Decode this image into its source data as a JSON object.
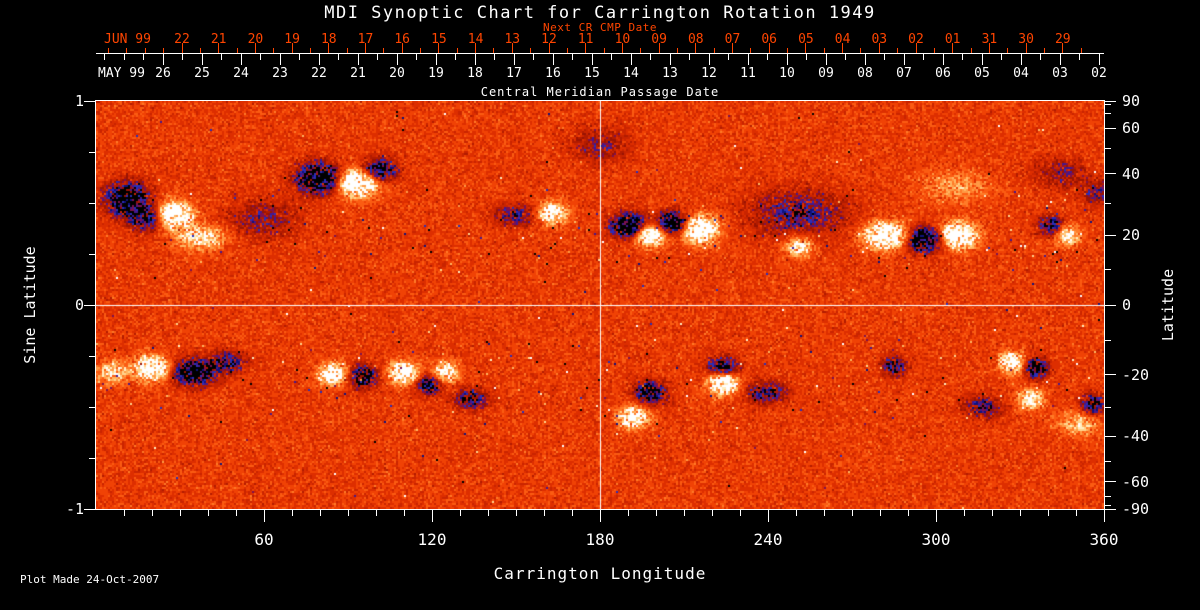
{
  "title": "MDI Synoptic Chart for Carrington Rotation 1949",
  "footer_note": "Plot Made 24-Oct-2007",
  "colors": {
    "background": "#000000",
    "foreground": "#ffffff",
    "accent_orange": "#ff4500"
  },
  "chart_data": {
    "type": "heatmap",
    "title": "MDI Synoptic Chart for Carrington Rotation 1949",
    "xlabel": "Carrington Longitude",
    "ylabel_left": "Sine Latitude",
    "ylabel_right": "Latitude",
    "top_axis_title": "Central Meridian Passage Date",
    "top_axis_next_cr_label": "Next CR CMP Date",
    "xlim": [
      0,
      360
    ],
    "ylim_sine": [
      -1,
      1
    ],
    "x_ticks_major": [
      60,
      120,
      180,
      240,
      300,
      360
    ],
    "x_tick_minor_step_deg": 10,
    "y_left_ticks_major": [
      "1",
      "0",
      "-1"
    ],
    "y_left_tick_minor_step": 0.25,
    "y_right_ticks_major": [
      90,
      60,
      40,
      20,
      0,
      -20,
      -40,
      -60,
      -90
    ],
    "y_right_ticks_minor": [
      80,
      70,
      50,
      30,
      10,
      -10,
      -30,
      -50,
      -70,
      -80
    ],
    "grid_longitude": [
      180
    ],
    "grid_latitude": [
      0
    ],
    "cmp_axis": {
      "next_cr_month": "JUN 99",
      "next_cr_days": [
        "22",
        "21",
        "20",
        "19",
        "18",
        "17",
        "16",
        "15",
        "14",
        "13",
        "12",
        "11",
        "10",
        "09",
        "08",
        "07",
        "06",
        "05",
        "04",
        "03",
        "02",
        "01",
        "31",
        "30",
        "29"
      ],
      "current_month": "MAY 99",
      "current_days": [
        "26",
        "25",
        "24",
        "23",
        "22",
        "21",
        "20",
        "19",
        "18",
        "17",
        "16",
        "15",
        "14",
        "13",
        "12",
        "11",
        "10",
        "09",
        "08",
        "07",
        "06",
        "05",
        "04",
        "03",
        "02"
      ]
    },
    "magnetogram": {
      "seed": 1949,
      "bias": 0.05,
      "noise_amp": 0.24,
      "speckle": {
        "base": 0.002,
        "band_amp": 0.011,
        "band_center": 0.36,
        "band_sigma": 0.17,
        "neg_frac": 0.58,
        "mag_base": 0.5,
        "mag_rand": 0.85
      },
      "palette": [
        [
          -1.02,
          "#000000"
        ],
        [
          -0.86,
          "#10127d"
        ],
        [
          -0.72,
          "#2a2eb8"
        ],
        [
          -0.6,
          "#46188c"
        ],
        [
          -0.46,
          "#7c1150"
        ],
        [
          -0.34,
          "#991303"
        ],
        [
          -0.22,
          "#b21b00"
        ],
        [
          -0.1,
          "#c92400"
        ],
        [
          0.04,
          "#dd2e00"
        ],
        [
          0.18,
          "#f04205"
        ],
        [
          0.32,
          "#fb5c12"
        ],
        [
          0.46,
          "#ff7b28"
        ],
        [
          0.6,
          "#ff9a45"
        ],
        [
          0.74,
          "#ffb763"
        ],
        [
          0.88,
          "#ffd48d"
        ],
        [
          1.0,
          "#ffeec2"
        ]
      ],
      "palette_top": "#ffffff",
      "active_regions_format": [
        "lon_deg",
        "sine_lat",
        "rx_deg",
        "ry_sine",
        "strength"
      ],
      "active_regions": [
        [
          11,
          0.52,
          7,
          0.075,
          -1.7
        ],
        [
          19,
          0.43,
          6,
          0.06,
          -1.5
        ],
        [
          27,
          0.44,
          7,
          0.06,
          1.9
        ],
        [
          38,
          0.33,
          8,
          0.055,
          1.0
        ],
        [
          60,
          0.42,
          12,
          0.09,
          -0.55
        ],
        [
          80,
          0.62,
          8,
          0.07,
          -1.8
        ],
        [
          93,
          0.6,
          7,
          0.065,
          2.0
        ],
        [
          101,
          0.66,
          6,
          0.05,
          -1.5
        ],
        [
          150,
          0.44,
          7,
          0.05,
          -0.8
        ],
        [
          163,
          0.45,
          5,
          0.05,
          1.4
        ],
        [
          180,
          0.78,
          10,
          0.08,
          -0.5
        ],
        [
          190,
          0.39,
          6,
          0.055,
          -1.7
        ],
        [
          198,
          0.34,
          5,
          0.05,
          1.7
        ],
        [
          206,
          0.4,
          5,
          0.05,
          -1.7
        ],
        [
          216,
          0.37,
          6,
          0.06,
          1.9
        ],
        [
          251,
          0.45,
          16,
          0.11,
          -0.75
        ],
        [
          251,
          0.29,
          5,
          0.05,
          1.0
        ],
        [
          282,
          0.34,
          7,
          0.06,
          1.9
        ],
        [
          296,
          0.32,
          6,
          0.055,
          -1.8
        ],
        [
          308,
          0.34,
          6,
          0.06,
          1.9
        ],
        [
          307,
          0.58,
          12,
          0.08,
          0.45
        ],
        [
          341,
          0.39,
          4,
          0.045,
          -1.2
        ],
        [
          347,
          0.34,
          4,
          0.045,
          1.2
        ],
        [
          344,
          0.65,
          9,
          0.07,
          -0.5
        ],
        [
          358,
          0.55,
          6,
          0.06,
          -0.6
        ],
        [
          6,
          -0.33,
          5,
          0.05,
          0.9
        ],
        [
          20,
          -0.31,
          6,
          0.055,
          1.7
        ],
        [
          35,
          -0.33,
          7,
          0.06,
          -1.6
        ],
        [
          47,
          -0.28,
          6,
          0.05,
          -0.9
        ],
        [
          85,
          -0.34,
          5,
          0.05,
          1.5
        ],
        [
          95,
          -0.35,
          5,
          0.05,
          -1.4
        ],
        [
          110,
          -0.33,
          5,
          0.05,
          1.6
        ],
        [
          119,
          -0.39,
          4,
          0.045,
          -1.3
        ],
        [
          125,
          -0.33,
          4,
          0.045,
          1.4
        ],
        [
          134,
          -0.46,
          6,
          0.05,
          -0.9
        ],
        [
          192,
          -0.55,
          5,
          0.05,
          1.5
        ],
        [
          198,
          -0.43,
          5,
          0.05,
          -1.5
        ],
        [
          224,
          -0.31,
          5,
          0.05,
          -1.5
        ],
        [
          224,
          -0.38,
          5,
          0.055,
          1.9
        ],
        [
          239,
          -0.43,
          7,
          0.05,
          -0.9
        ],
        [
          285,
          -0.3,
          4,
          0.045,
          -1.1
        ],
        [
          317,
          -0.5,
          6,
          0.05,
          -0.85
        ],
        [
          327,
          -0.28,
          4,
          0.05,
          1.5
        ],
        [
          336,
          -0.31,
          4,
          0.045,
          -1.4
        ],
        [
          334,
          -0.46,
          4,
          0.045,
          1.3
        ],
        [
          351,
          -0.58,
          7,
          0.06,
          0.7
        ],
        [
          356,
          -0.49,
          4,
          0.05,
          -1.2
        ]
      ]
    }
  }
}
